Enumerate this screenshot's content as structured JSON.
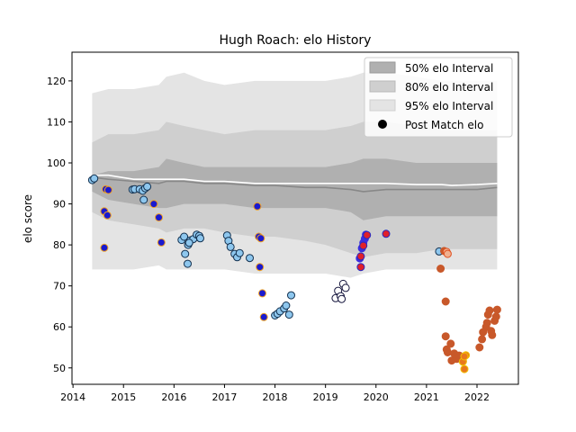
{
  "chart_data": {
    "type": "scatter",
    "title": "Hugh Roach: elo History",
    "xlabel": "",
    "ylabel": "elo score",
    "xlim": [
      2013.98,
      2022.82
    ],
    "ylim": [
      46,
      127
    ],
    "x_ticks": [
      "2014",
      "2015",
      "2016",
      "2017",
      "2018",
      "2019",
      "2020",
      "2021",
      "2022"
    ],
    "y_ticks": [
      "50",
      "60",
      "70",
      "80",
      "90",
      "100",
      "110",
      "120"
    ],
    "grid": false,
    "legend": {
      "position": "top-right",
      "entries": [
        "50% elo Interval",
        "80% elo Interval",
        "95% elo Interval",
        "Post Match elo"
      ]
    },
    "colors": {
      "band50": "#b0b0b0",
      "band80": "#cfcfcf",
      "band95": "#e4e4e4",
      "mean_line": "#888888",
      "median_line": "#ffffff",
      "legend_marker": "#000000"
    },
    "bands": {
      "x": [
        2014.38,
        2014.7,
        2015.2,
        2015.7,
        2015.85,
        2016.2,
        2016.6,
        2017.0,
        2017.6,
        2018.0,
        2018.6,
        2019.0,
        2019.5,
        2019.75,
        2020.2,
        2020.8,
        2021.3,
        2021.5,
        2022.0,
        2022.4
      ],
      "p95_upper": [
        117,
        118,
        118,
        119,
        121,
        122,
        120,
        119,
        120,
        120,
        120,
        120,
        121,
        122,
        122,
        121,
        120,
        120,
        120,
        120
      ],
      "p80_upper": [
        105,
        107,
        107,
        108,
        110,
        109,
        108,
        107,
        108,
        108,
        108,
        108,
        109,
        110,
        110,
        109,
        108,
        108,
        108,
        108
      ],
      "p50_upper": [
        97,
        98,
        98,
        99,
        101,
        100,
        99,
        99,
        99,
        99,
        99,
        99,
        100,
        101,
        101,
        100,
        100,
        100,
        100,
        100
      ],
      "median": [
        97,
        97,
        96,
        96,
        96,
        96,
        95.5,
        95.5,
        95,
        95,
        95,
        95,
        95,
        95,
        95,
        94.7,
        94.7,
        94.5,
        94.7,
        95
      ],
      "mean": [
        96.5,
        96,
        95.5,
        95,
        95.5,
        95.5,
        95,
        95,
        94.5,
        94.5,
        94,
        94,
        93.5,
        93,
        93.5,
        93.5,
        93.5,
        93.5,
        93.5,
        94
      ],
      "p50_lower": [
        93,
        91,
        90,
        89,
        89,
        90,
        90,
        90,
        89,
        89,
        89,
        89,
        88,
        86,
        87,
        87,
        87,
        87,
        87,
        87
      ],
      "p80_lower": [
        88,
        86,
        85,
        84,
        83,
        84,
        84,
        83,
        82,
        82,
        81,
        80,
        78,
        77,
        78,
        78,
        79,
        79,
        79,
        79
      ],
      "p95_lower": [
        74,
        74,
        74,
        75,
        74,
        74,
        74,
        74,
        73,
        73,
        73,
        73,
        72,
        73,
        74,
        74,
        74,
        74,
        74,
        74
      ]
    },
    "series": [
      {
        "fill": "#8ec7ee",
        "edge": "#12304f",
        "points": [
          [
            2014.38,
            95.8
          ],
          [
            2014.42,
            96.2
          ],
          [
            2015.18,
            93.5
          ],
          [
            2015.22,
            93.6
          ],
          [
            2015.32,
            93.6
          ],
          [
            2015.38,
            93.2
          ],
          [
            2015.43,
            93.8
          ],
          [
            2015.47,
            94.2
          ],
          [
            2015.4,
            91.0
          ],
          [
            2016.15,
            81.2
          ],
          [
            2016.2,
            82.0
          ],
          [
            2016.22,
            77.8
          ],
          [
            2016.27,
            75.4
          ],
          [
            2016.28,
            80.0
          ],
          [
            2016.32,
            81.1
          ],
          [
            2016.38,
            81.4
          ],
          [
            2016.45,
            82.5
          ],
          [
            2016.5,
            82.2
          ],
          [
            2016.52,
            81.6
          ],
          [
            2016.3,
            80.5
          ],
          [
            2017.05,
            82.3
          ],
          [
            2017.08,
            81.0
          ],
          [
            2017.12,
            79.5
          ],
          [
            2017.2,
            77.8
          ],
          [
            2017.25,
            77.0
          ],
          [
            2017.3,
            78.0
          ],
          [
            2017.5,
            76.8
          ],
          [
            2018.0,
            62.8
          ],
          [
            2018.05,
            63.2
          ],
          [
            2018.1,
            63.8
          ],
          [
            2018.18,
            64.5
          ],
          [
            2018.22,
            65.2
          ],
          [
            2018.28,
            63.0
          ],
          [
            2018.32,
            67.7
          ],
          [
            2021.25,
            78.4
          ]
        ]
      },
      {
        "fill": "#ffffff",
        "edge": "#14143c",
        "points": [
          [
            2019.2,
            67.0
          ],
          [
            2019.25,
            68.8
          ],
          [
            2019.3,
            67.5
          ],
          [
            2019.35,
            70.5
          ],
          [
            2019.4,
            69.5
          ],
          [
            2019.32,
            66.8
          ]
        ]
      },
      {
        "fill": "#1a1acf",
        "edge": "#f0a020",
        "points": [
          [
            2014.62,
            88.2
          ],
          [
            2014.65,
            93.6
          ],
          [
            2014.7,
            93.4
          ],
          [
            2014.68,
            87.2
          ],
          [
            2014.62,
            79.3
          ],
          [
            2015.6,
            90.0
          ],
          [
            2015.7,
            86.7
          ],
          [
            2015.75,
            80.6
          ],
          [
            2017.65,
            89.4
          ],
          [
            2017.68,
            82.0
          ],
          [
            2017.72,
            81.6
          ],
          [
            2017.7,
            74.6
          ],
          [
            2017.75,
            68.2
          ],
          [
            2017.78,
            62.4
          ]
        ]
      },
      {
        "fill": "#3a2ee0",
        "edge": "#3a2ee0",
        "points": [
          [
            2019.68,
            76.7
          ],
          [
            2019.72,
            79.2
          ],
          [
            2019.75,
            80.5
          ],
          [
            2019.78,
            81.5
          ],
          [
            2019.8,
            82.5
          ]
        ]
      },
      {
        "fill": "#e0202a",
        "edge": "#2828c0",
        "points": [
          [
            2019.7,
            74.6
          ],
          [
            2019.7,
            77.2
          ],
          [
            2019.75,
            79.8
          ],
          [
            2019.82,
            82.4
          ],
          [
            2020.2,
            82.7
          ]
        ]
      },
      {
        "fill": "#c8582a",
        "edge": "#c8582a",
        "points": [
          [
            2021.28,
            74.2
          ],
          [
            2021.35,
            78.5
          ],
          [
            2021.38,
            66.2
          ],
          [
            2021.38,
            57.7
          ],
          [
            2021.4,
            54.5
          ],
          [
            2021.42,
            53.8
          ],
          [
            2021.48,
            55.9
          ],
          [
            2021.5,
            51.8
          ],
          [
            2021.55,
            53.5
          ],
          [
            2021.6,
            52.2
          ],
          [
            2021.65,
            53.0
          ],
          [
            2021.72,
            51.6
          ],
          [
            2022.05,
            55.0
          ],
          [
            2022.1,
            57.0
          ],
          [
            2022.12,
            58.7
          ],
          [
            2022.18,
            60.0
          ],
          [
            2022.2,
            61.0
          ],
          [
            2022.22,
            63.0
          ],
          [
            2022.25,
            64.0
          ],
          [
            2022.28,
            59.0
          ],
          [
            2022.3,
            58.0
          ],
          [
            2022.35,
            61.5
          ],
          [
            2022.38,
            62.5
          ],
          [
            2022.4,
            64.2
          ]
        ]
      },
      {
        "fill": "#e8781e",
        "edge": "#f2c000",
        "points": [
          [
            2021.72,
            51.5
          ],
          [
            2021.75,
            49.7
          ],
          [
            2021.78,
            53.1
          ],
          [
            2021.75,
            52.8
          ]
        ]
      },
      {
        "fill": "#f0b090",
        "edge": "#e05020",
        "points": [
          [
            2021.4,
            78.3
          ],
          [
            2021.42,
            77.8
          ]
        ]
      }
    ]
  }
}
